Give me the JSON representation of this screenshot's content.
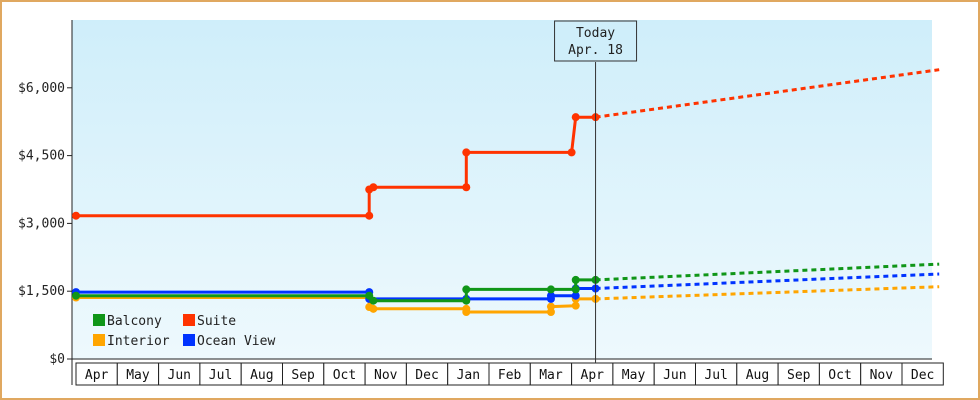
{
  "chart_data": {
    "type": "line",
    "title": "",
    "xlabel": "",
    "ylabel": "",
    "ylim": [
      0,
      7500
    ],
    "y_ticks": [
      "$0",
      "$1,500",
      "$3,000",
      "$4,500",
      "$6,000"
    ],
    "y_tick_values": [
      0,
      1500,
      3000,
      4500,
      6000
    ],
    "months": [
      "Apr",
      "May",
      "Jun",
      "Jul",
      "Aug",
      "Sep",
      "Oct",
      "Nov",
      "Dec",
      "Jan",
      "Feb",
      "Mar",
      "Apr",
      "May",
      "Jun",
      "Jul",
      "Aug",
      "Sep",
      "Oct",
      "Nov",
      "Dec"
    ],
    "x_unit": "month index (0 = first Apr, fractional = within month)",
    "today": {
      "line1": "Today",
      "line2": "Apr. 18",
      "x": 12.58
    },
    "grid": false,
    "legend_position": "bottom-left",
    "series": [
      {
        "name": "Balcony",
        "color": "#109618",
        "actual": [
          {
            "x": 0.0,
            "y": 1400
          },
          {
            "x": 7.1,
            "y": 1400
          },
          {
            "x": 7.2,
            "y": 1290
          },
          {
            "x": 9.45,
            "y": 1290
          },
          {
            "x": 9.45,
            "y": 1540
          },
          {
            "x": 11.5,
            "y": 1540
          },
          {
            "x": 12.1,
            "y": 1540
          },
          {
            "x": 12.1,
            "y": 1750
          },
          {
            "x": 12.58,
            "y": 1750
          }
        ],
        "forecast": [
          {
            "x": 12.58,
            "y": 1750
          },
          {
            "x": 20.9,
            "y": 2100
          }
        ]
      },
      {
        "name": "Suite",
        "color": "#ff3300",
        "actual": [
          {
            "x": 0.0,
            "y": 3170
          },
          {
            "x": 7.1,
            "y": 3170
          },
          {
            "x": 7.1,
            "y": 3750
          },
          {
            "x": 7.2,
            "y": 3800
          },
          {
            "x": 9.45,
            "y": 3800
          },
          {
            "x": 9.45,
            "y": 4570
          },
          {
            "x": 12.0,
            "y": 4570
          },
          {
            "x": 12.1,
            "y": 5350
          },
          {
            "x": 12.58,
            "y": 5350
          }
        ],
        "forecast": [
          {
            "x": 12.58,
            "y": 5350
          },
          {
            "x": 20.9,
            "y": 6400
          }
        ]
      },
      {
        "name": "Interior",
        "color": "#ffa500",
        "actual": [
          {
            "x": 0.0,
            "y": 1360
          },
          {
            "x": 7.1,
            "y": 1360
          },
          {
            "x": 7.1,
            "y": 1150
          },
          {
            "x": 7.2,
            "y": 1110
          },
          {
            "x": 9.45,
            "y": 1110
          },
          {
            "x": 9.45,
            "y": 1040
          },
          {
            "x": 11.5,
            "y": 1040
          },
          {
            "x": 11.5,
            "y": 1160
          },
          {
            "x": 12.1,
            "y": 1180
          },
          {
            "x": 12.1,
            "y": 1330
          },
          {
            "x": 12.58,
            "y": 1330
          }
        ],
        "forecast": [
          {
            "x": 12.58,
            "y": 1330
          },
          {
            "x": 20.9,
            "y": 1600
          }
        ]
      },
      {
        "name": "Ocean View",
        "color": "#0033ff",
        "actual": [
          {
            "x": 0.0,
            "y": 1480
          },
          {
            "x": 7.1,
            "y": 1480
          },
          {
            "x": 7.1,
            "y": 1330
          },
          {
            "x": 9.45,
            "y": 1330
          },
          {
            "x": 11.5,
            "y": 1330
          },
          {
            "x": 11.5,
            "y": 1400
          },
          {
            "x": 12.1,
            "y": 1400
          },
          {
            "x": 12.1,
            "y": 1560
          },
          {
            "x": 12.58,
            "y": 1560
          }
        ],
        "forecast": [
          {
            "x": 12.58,
            "y": 1560
          },
          {
            "x": 20.9,
            "y": 1880
          }
        ]
      }
    ],
    "markers": {
      "Balcony": [
        0.0,
        7.1,
        7.2,
        9.45,
        11.5,
        12.1,
        12.58
      ],
      "Suite": [
        0.0,
        7.1,
        7.2,
        9.45,
        12.0,
        12.1,
        12.58
      ],
      "Interior": [
        0.0,
        7.1,
        7.2,
        9.45,
        11.5,
        12.1,
        12.58
      ],
      "Ocean View": [
        0.0,
        7.1,
        9.45,
        11.5,
        12.1,
        12.58
      ]
    }
  }
}
